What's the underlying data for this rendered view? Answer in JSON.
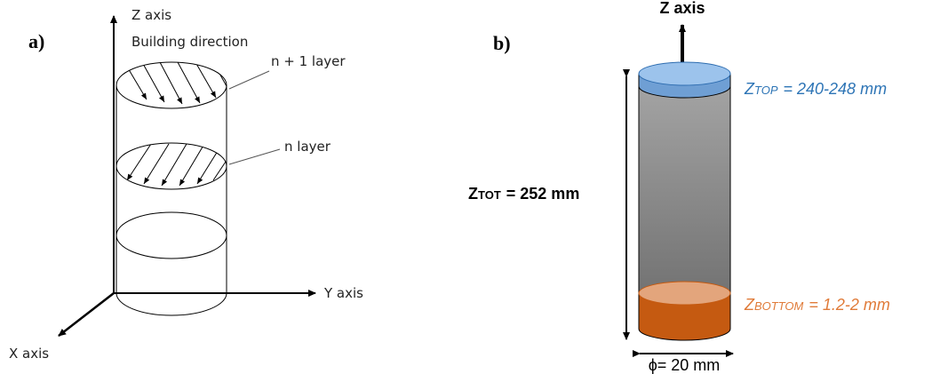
{
  "panel_a": {
    "label": "a)",
    "z_axis": "Z axis",
    "building_direction": "Building direction",
    "layer_top": "n + 1 layer",
    "layer": "n layer",
    "y_axis": "Y axis",
    "x_axis": "X axis"
  },
  "panel_b": {
    "label": "b)",
    "z_axis": "Z axis",
    "z_top": {
      "symbol": "Z",
      "subscript": "TOP",
      "value": "= 240-248 mm"
    },
    "z_tot": {
      "symbol": "Z",
      "subscript": "TOT",
      "value": "= 252 mm"
    },
    "z_bottom": {
      "symbol": "Z",
      "subscript": "BOTTOM",
      "value": "= 1.2-2 mm"
    },
    "diameter": "ϕ= 20 mm"
  }
}
